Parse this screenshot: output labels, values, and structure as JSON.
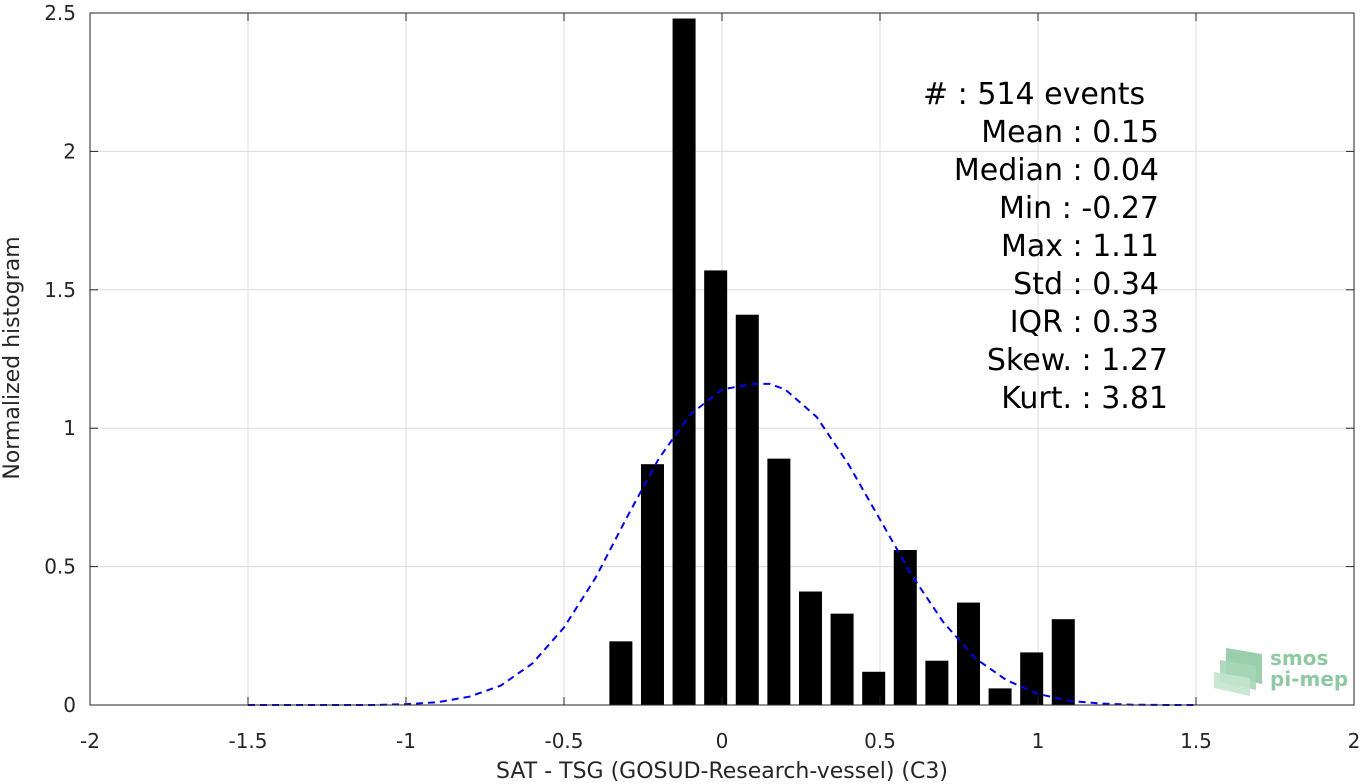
{
  "chart_data": {
    "type": "bar",
    "xlabel": "SAT - TSG (GOSUD-Research-vessel) (C3)",
    "ylabel": "Normalized histogram",
    "xlim": [
      -2,
      2
    ],
    "ylim": [
      0,
      2.5
    ],
    "xticks": [
      -2,
      -1.5,
      -1,
      -0.5,
      0,
      0.5,
      1,
      1.5,
      2
    ],
    "xtick_labels": [
      "-2",
      "-1.5",
      "-1",
      "-0.5",
      "0",
      "0.5",
      "1",
      "1.5",
      "2"
    ],
    "yticks": [
      0,
      0.5,
      1,
      1.5,
      2,
      2.5
    ],
    "ytick_labels": [
      "0",
      "0.5",
      "1",
      "1.5",
      "2",
      "2.5"
    ],
    "grid": true,
    "bar_color": "#000000",
    "bars": {
      "centers": [
        -0.32,
        -0.22,
        -0.12,
        -0.02,
        0.08,
        0.18,
        0.28,
        0.38,
        0.48,
        0.58,
        0.68,
        0.78,
        0.88,
        0.98,
        1.08
      ],
      "values": [
        0.23,
        0.87,
        2.48,
        1.57,
        1.41,
        0.89,
        0.41,
        0.33,
        0.12,
        0.56,
        0.16,
        0.37,
        0.06,
        0.19,
        0.31
      ]
    },
    "fit_curve": {
      "style": "dashed",
      "color": "#0000ee",
      "x": [
        -1.5,
        -1.4,
        -1.3,
        -1.2,
        -1.1,
        -1.0,
        -0.9,
        -0.8,
        -0.7,
        -0.6,
        -0.5,
        -0.4,
        -0.3,
        -0.2,
        -0.1,
        0.0,
        0.1,
        0.15,
        0.2,
        0.3,
        0.4,
        0.5,
        0.6,
        0.7,
        0.8,
        0.9,
        1.0,
        1.1,
        1.2,
        1.3,
        1.4,
        1.5
      ],
      "y": [
        0.0,
        0.0,
        0.0,
        0.0,
        0.0,
        0.003,
        0.01,
        0.03,
        0.07,
        0.15,
        0.28,
        0.46,
        0.68,
        0.89,
        1.05,
        1.14,
        1.16,
        1.16,
        1.14,
        1.04,
        0.87,
        0.67,
        0.47,
        0.3,
        0.17,
        0.09,
        0.04,
        0.015,
        0.005,
        0.001,
        0.0,
        0.0
      ]
    }
  },
  "stats": {
    "count": "#  : 514 events",
    "mean": "Mean : 0.15",
    "median": "Median : 0.04",
    "min": "Min : -0.27",
    "max": "Max : 1.11",
    "std": "Std : 0.34",
    "iqr": "IQR : 0.33",
    "skew": "Skew. : 1.27",
    "kurt": "Kurt. : 3.81"
  },
  "logo": {
    "line1": "smos",
    "line2": "pi-mep",
    "color": "#8fc9a3"
  }
}
